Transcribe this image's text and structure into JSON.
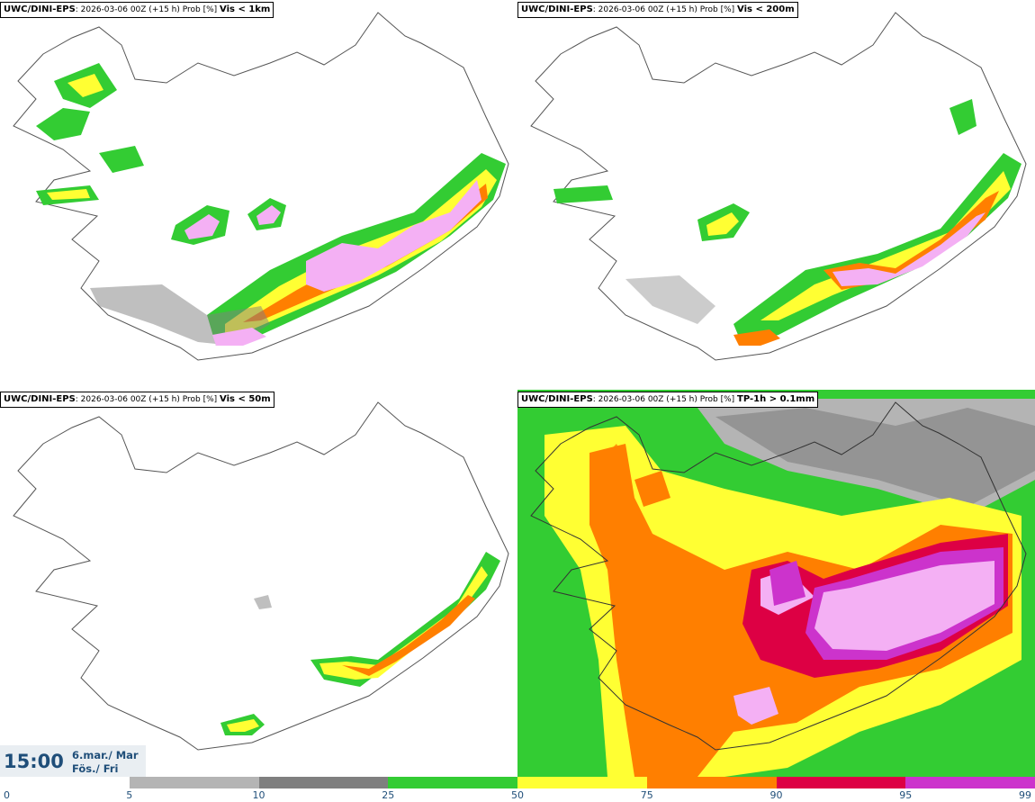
{
  "panels": [
    {
      "model": "UWC/DINI-EPS",
      "run": ": 2026-03-06 00Z (+15 h) Prob [%] ",
      "variable": "Vis < 1km"
    },
    {
      "model": "UWC/DINI-EPS",
      "run": ": 2026-03-06 00Z (+15 h) Prob [%] ",
      "variable": "Vis < 200m"
    },
    {
      "model": "UWC/DINI-EPS",
      "run": ": 2026-03-06 00Z (+15 h) Prob [%] ",
      "variable": "Vis < 50m"
    },
    {
      "model": "UWC/DINI-EPS",
      "run": ": 2026-03-06 00Z (+15 h) Prob [%] ",
      "variable": "TP-1h > 0.1mm"
    }
  ],
  "time": {
    "hour": "15:00",
    "date_line1": "6.mar./ Mar",
    "date_line2": "Fös./ Fri"
  },
  "legend": {
    "ticks": [
      "0",
      "5",
      "10",
      "25",
      "50",
      "75",
      "90",
      "95",
      "99"
    ],
    "colors": [
      "#ffffff",
      "#b4b4b4",
      "#7f7f7f",
      "#33cc33",
      "#ffff33",
      "#ff7f00",
      "#dd0044",
      "#cc33cc",
      "#f4b0f4"
    ]
  }
}
